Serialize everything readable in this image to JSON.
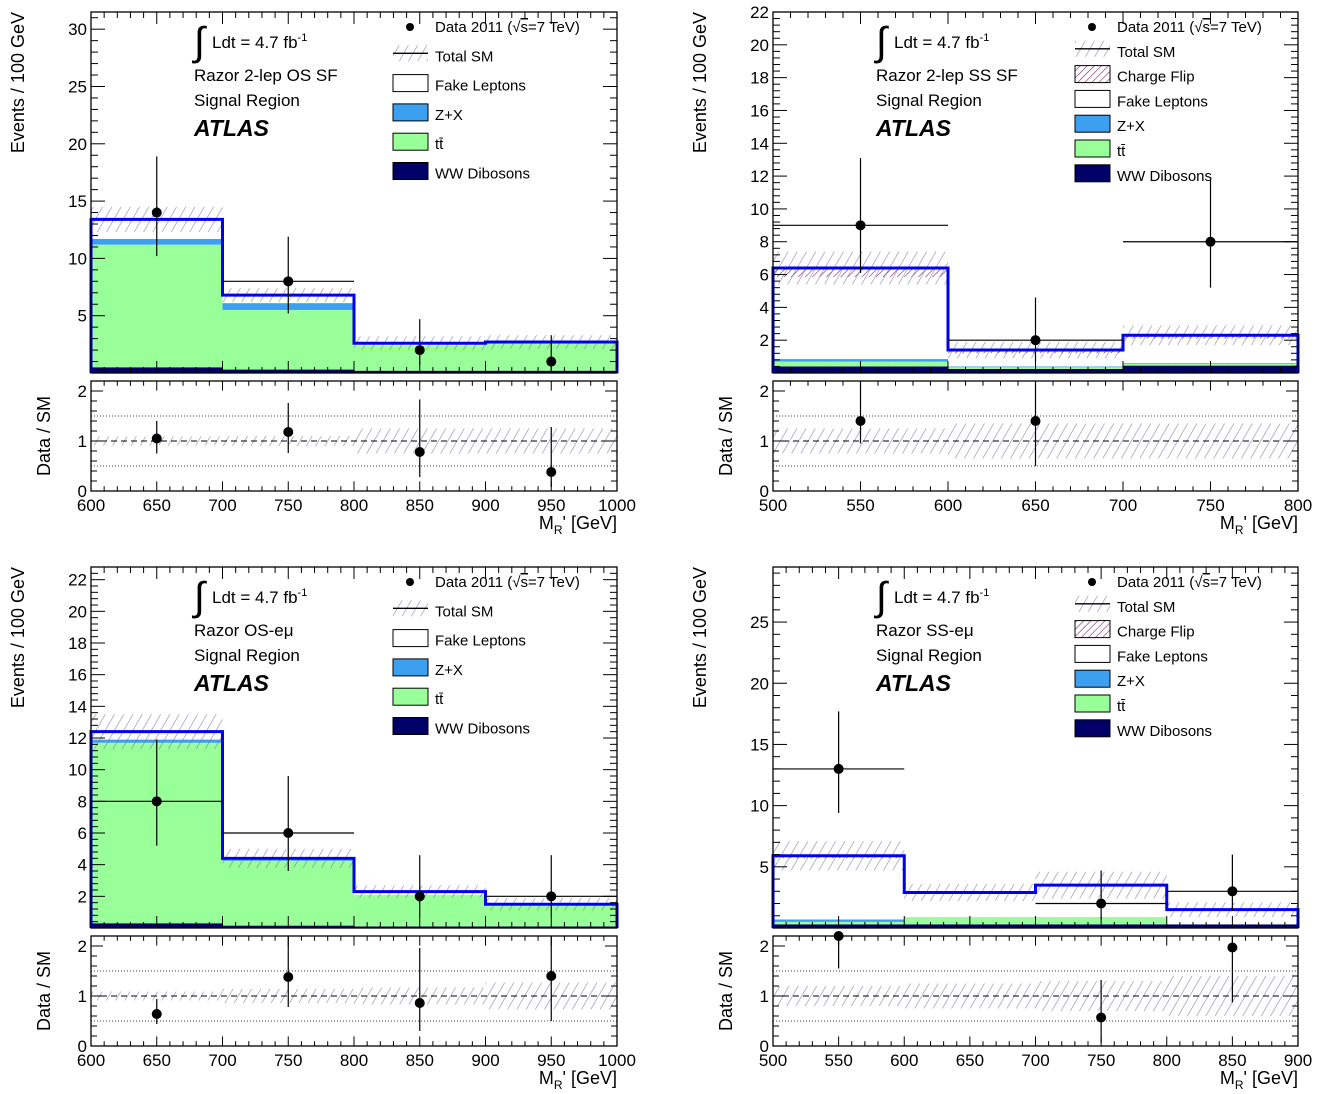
{
  "colors": {
    "fake": "#ffffff",
    "zx": "#3d9fef",
    "ttbar": "#99ff99",
    "dibosons": "#000066",
    "total_line": "#0000ee",
    "charge_flip": "#7a2a6a",
    "band": "#6a6a9a"
  },
  "chart_data": [
    {
      "type": "histogram",
      "name": "os-sf",
      "info": {
        "lumi": "Ldt = 4.7 fb",
        "lumi_sup": "-1",
        "line1": "Razor 2-lep OS SF",
        "line2": "Signal Region",
        "atlas": "ATLAS"
      },
      "ylabel": "Events / 100 GeV",
      "ratio_ylabel": "Data / SM",
      "xlabel": "M",
      "xlabel_sub": "R",
      "xlabel_tail": "' [GeV]",
      "x_edges": [
        600,
        700,
        800,
        900,
        1000
      ],
      "xlim": [
        600,
        1000
      ],
      "ylim": [
        0,
        31.5
      ],
      "yticks": [
        5,
        10,
        15,
        20,
        25,
        30
      ],
      "xticks": [
        600,
        650,
        700,
        750,
        800,
        850,
        900,
        950,
        1000
      ],
      "legend": [
        {
          "kind": "data",
          "label": "Data 2011 (",
          "sqrt": "s",
          "tail": "=7 TeV)"
        },
        {
          "kind": "total",
          "label": "Total SM"
        },
        {
          "kind": "fake",
          "label": "Fake Leptons"
        },
        {
          "kind": "zx",
          "label": "Z+X"
        },
        {
          "kind": "ttbar",
          "label": "tt̄"
        },
        {
          "kind": "dibosons",
          "label": "WW Dibosons"
        }
      ],
      "stack": [
        {
          "name": "WW Dibosons",
          "kind": "dibosons",
          "values": [
            0.5,
            0.3,
            0.2,
            0.2
          ]
        },
        {
          "name": "tt̄",
          "kind": "ttbar",
          "values": [
            10.7,
            5.2,
            2.2,
            2.4
          ]
        },
        {
          "name": "Z+X",
          "kind": "zx",
          "values": [
            0.5,
            0.6,
            0.0,
            0.0
          ]
        },
        {
          "name": "Fake Leptons",
          "kind": "fake",
          "values": [
            1.7,
            0.7,
            0.2,
            0.1
          ]
        }
      ],
      "total": [
        13.4,
        6.8,
        2.6,
        2.7
      ],
      "band_unc": [
        1.1,
        0.6,
        0.6,
        0.6
      ],
      "data": {
        "x": [
          650,
          750,
          850,
          950
        ],
        "y": [
          14,
          8,
          2,
          1
        ],
        "err_up": [
          4.9,
          3.9,
          2.7,
          2.3
        ],
        "err_down": [
          3.8,
          2.8,
          1.3,
          0.8
        ],
        "xerr": [
          false,
          true,
          false,
          false
        ]
      },
      "ratio": {
        "ylim": [
          0,
          2.2
        ],
        "yticks": [
          0,
          1,
          2
        ],
        "y": [
          1.05,
          1.18,
          0.78,
          0.38
        ],
        "err_up": [
          0.35,
          0.58,
          1.05,
          0.9
        ],
        "err_down": [
          0.3,
          0.42,
          0.5,
          0.3
        ],
        "band_unc": [
          0.09,
          0.1,
          0.25,
          0.25
        ]
      }
    },
    {
      "type": "histogram",
      "name": "ss-sf",
      "info": {
        "lumi": "Ldt = 4.7 fb",
        "lumi_sup": "-1",
        "line1": "Razor 2-lep SS SF",
        "line2": "Signal Region",
        "atlas": "ATLAS"
      },
      "ylabel": "Events / 100 GeV",
      "ratio_ylabel": "Data / SM",
      "xlabel": "M",
      "xlabel_sub": "R",
      "xlabel_tail": "' [GeV]",
      "x_edges": [
        500,
        600,
        700,
        800
      ],
      "xlim": [
        500,
        800
      ],
      "ylim": [
        0,
        22
      ],
      "yticks": [
        2,
        4,
        6,
        8,
        10,
        12,
        14,
        16,
        18,
        20,
        22
      ],
      "xticks": [
        500,
        550,
        600,
        650,
        700,
        750,
        800
      ],
      "legend": [
        {
          "kind": "data",
          "label": "Data 2011 (",
          "sqrt": "s",
          "tail": "=7 TeV)"
        },
        {
          "kind": "total",
          "label": "Total SM"
        },
        {
          "kind": "charge_flip",
          "label": "Charge Flip"
        },
        {
          "kind": "fake",
          "label": "Fake Leptons"
        },
        {
          "kind": "zx",
          "label": "Z+X"
        },
        {
          "kind": "ttbar",
          "label": "tt̄"
        },
        {
          "kind": "dibosons",
          "label": "WW Dibosons"
        }
      ],
      "stack": [
        {
          "name": "WW Dibosons",
          "kind": "dibosons",
          "values": [
            0.4,
            0.25,
            0.45
          ]
        },
        {
          "name": "tt̄",
          "kind": "ttbar",
          "values": [
            0.3,
            0.1,
            0.1
          ]
        },
        {
          "name": "Z+X",
          "kind": "zx",
          "values": [
            0.15,
            0.05,
            0.05
          ]
        },
        {
          "name": "Fake Leptons",
          "kind": "fake",
          "values": [
            5.0,
            0.8,
            1.5
          ]
        },
        {
          "name": "Charge Flip",
          "kind": "charge_flip",
          "values": [
            0.55,
            0.2,
            0.2
          ]
        }
      ],
      "total": [
        6.4,
        1.4,
        2.3
      ],
      "band_unc": [
        1.0,
        0.5,
        0.6
      ],
      "data": {
        "x": [
          550,
          650,
          750
        ],
        "y": [
          9,
          2,
          8
        ],
        "err_up": [
          4.1,
          2.6,
          3.8
        ],
        "err_down": [
          2.9,
          1.3,
          2.8
        ],
        "xerr": [
          true,
          true,
          true
        ]
      },
      "ratio": {
        "ylim": [
          0,
          2.2
        ],
        "yticks": [
          0,
          1,
          2
        ],
        "y": [
          1.4,
          1.4,
          null
        ],
        "err_up": [
          1.0,
          1.0,
          0
        ],
        "err_down": [
          0.45,
          0.9,
          0
        ],
        "band_unc": [
          0.25,
          0.35,
          0.35
        ]
      }
    },
    {
      "type": "histogram",
      "name": "os-emu",
      "info": {
        "lumi": "Ldt = 4.7 fb",
        "lumi_sup": "-1",
        "line1": "Razor OS-eμ",
        "line2": "Signal Region",
        "atlas": "ATLAS"
      },
      "ylabel": "Events / 100 GeV",
      "ratio_ylabel": "Data / SM",
      "xlabel": "M",
      "xlabel_sub": "R",
      "xlabel_tail": "' [GeV]",
      "x_edges": [
        600,
        700,
        800,
        900,
        1000
      ],
      "xlim": [
        600,
        1000
      ],
      "ylim": [
        0,
        22.8
      ],
      "yticks": [
        2,
        4,
        6,
        8,
        10,
        12,
        14,
        16,
        18,
        20,
        22
      ],
      "xticks": [
        600,
        650,
        700,
        750,
        800,
        850,
        900,
        950,
        1000
      ],
      "legend": [
        {
          "kind": "data",
          "label": "Data 2011 (",
          "sqrt": "s",
          "tail": "=7 TeV)"
        },
        {
          "kind": "total",
          "label": "Total SM"
        },
        {
          "kind": "fake",
          "label": "Fake Leptons"
        },
        {
          "kind": "zx",
          "label": "Z+X"
        },
        {
          "kind": "ttbar",
          "label": "tt̄"
        },
        {
          "kind": "dibosons",
          "label": "WW Dibosons"
        }
      ],
      "stack": [
        {
          "name": "WW Dibosons",
          "kind": "dibosons",
          "values": [
            0.3,
            0.15,
            0.1,
            0.1
          ]
        },
        {
          "name": "tt̄",
          "kind": "ttbar",
          "values": [
            11.4,
            4.1,
            2.0,
            1.3
          ]
        },
        {
          "name": "Z+X",
          "kind": "zx",
          "values": [
            0.2,
            0.05,
            0.0,
            0.0
          ]
        },
        {
          "name": "Fake Leptons",
          "kind": "fake",
          "values": [
            0.5,
            0.1,
            0.2,
            0.1
          ]
        }
      ],
      "total": [
        12.4,
        4.4,
        2.3,
        1.5
      ],
      "band_unc": [
        1.1,
        0.6,
        0.4,
        0.4
      ],
      "data": {
        "x": [
          650,
          750,
          850,
          950
        ],
        "y": [
          8,
          6,
          2,
          2
        ],
        "err_up": [
          3.9,
          3.6,
          2.6,
          2.6
        ],
        "err_down": [
          2.8,
          2.4,
          1.3,
          1.3
        ],
        "xerr": [
          true,
          true,
          false,
          true
        ]
      },
      "ratio": {
        "ylim": [
          0,
          2.2
        ],
        "yticks": [
          0,
          1,
          2
        ],
        "y": [
          0.64,
          1.38,
          0.86,
          1.4
        ],
        "err_up": [
          0.3,
          0.82,
          1.1,
          1.6
        ],
        "err_down": [
          0.2,
          0.6,
          0.56,
          0.9
        ],
        "band_unc": [
          0.09,
          0.14,
          0.17,
          0.27
        ]
      }
    },
    {
      "type": "histogram",
      "name": "ss-emu",
      "info": {
        "lumi": "Ldt = 4.7 fb",
        "lumi_sup": "-1",
        "line1": "Razor SS-eμ",
        "line2": "Signal Region",
        "atlas": "ATLAS"
      },
      "ylabel": "Events / 100 GeV",
      "ratio_ylabel": "Data / SM",
      "xlabel": "M",
      "xlabel_sub": "R",
      "xlabel_tail": "' [GeV]",
      "x_edges": [
        500,
        600,
        700,
        800,
        900
      ],
      "xlim": [
        500,
        900
      ],
      "ylim": [
        0,
        29.5
      ],
      "yticks": [
        5,
        10,
        15,
        20,
        25
      ],
      "xticks": [
        500,
        550,
        600,
        650,
        700,
        750,
        800,
        850,
        900
      ],
      "legend": [
        {
          "kind": "data",
          "label": "Data 2011 (",
          "sqrt": "s",
          "tail": "=7 TeV)"
        },
        {
          "kind": "total",
          "label": "Total SM"
        },
        {
          "kind": "charge_flip",
          "label": "Charge Flip"
        },
        {
          "kind": "fake",
          "label": "Fake Leptons"
        },
        {
          "kind": "zx",
          "label": "Z+X"
        },
        {
          "kind": "ttbar",
          "label": "tt̄"
        },
        {
          "kind": "dibosons",
          "label": "WW Dibosons"
        }
      ],
      "stack": [
        {
          "name": "WW Dibosons",
          "kind": "dibosons",
          "values": [
            0.3,
            0.3,
            0.3,
            0.3
          ]
        },
        {
          "name": "tt̄",
          "kind": "ttbar",
          "values": [
            0.2,
            0.6,
            0.6,
            0.0
          ]
        },
        {
          "name": "Z+X",
          "kind": "zx",
          "values": [
            0.2,
            0.0,
            0.0,
            0.0
          ]
        },
        {
          "name": "Fake Leptons",
          "kind": "fake",
          "values": [
            5.0,
            1.9,
            2.5,
            1.1
          ]
        },
        {
          "name": "Charge Flip",
          "kind": "charge_flip",
          "values": [
            0.2,
            0.1,
            0.1,
            0.1
          ]
        }
      ],
      "total": [
        5.9,
        2.9,
        3.5,
        1.5
      ],
      "band_unc": [
        1.2,
        0.7,
        1.1,
        0.6
      ],
      "data": {
        "x": [
          550,
          750,
          850
        ],
        "y": [
          13,
          2,
          3
        ],
        "err_up": [
          4.7,
          2.7,
          3.0
        ],
        "err_down": [
          3.6,
          1.3,
          1.6
        ],
        "xerr": [
          true,
          true,
          true
        ]
      },
      "ratio": {
        "ylim": [
          0,
          2.2
        ],
        "yticks": [
          0,
          1,
          2
        ],
        "y": [
          2.2,
          0.57,
          1.97
        ],
        "err_up": [
          0.6,
          0.75,
          1.2
        ],
        "err_down": [
          0.65,
          0.5,
          1.1
        ],
        "band_unc": [
          0.2,
          0.25,
          0.3,
          0.4
        ]
      }
    }
  ]
}
